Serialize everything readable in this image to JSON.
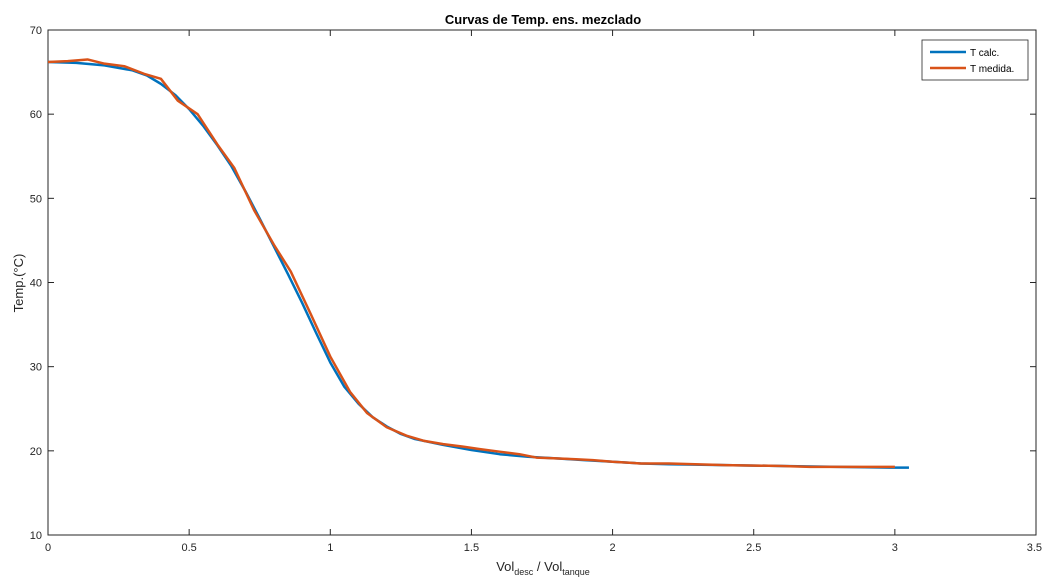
{
  "chart_data": {
    "type": "line",
    "title": "Curvas de Temp. ens. mezclado",
    "ylabel": "Temp.(°C)",
    "xlabel": {
      "base1": "Vol",
      "sub1": "desc",
      "mid": " / ",
      "base2": "Vol",
      "sub2": "tanque"
    },
    "xlim": [
      0,
      3.5
    ],
    "ylim": [
      10,
      70
    ],
    "xticks": [
      "0",
      "0.5",
      "1",
      "1.5",
      "2",
      "2.5",
      "3",
      "3.5"
    ],
    "yticks": [
      "10",
      "20",
      "30",
      "40",
      "50",
      "60",
      "70"
    ],
    "grid": false,
    "legend_position": "top-right",
    "series": [
      {
        "name": "T calc.",
        "color": "#0072BD",
        "x": [
          0,
          0.1,
          0.2,
          0.3,
          0.35,
          0.4,
          0.45,
          0.5,
          0.55,
          0.6,
          0.65,
          0.7,
          0.75,
          0.8,
          0.85,
          0.9,
          0.95,
          1.0,
          1.05,
          1.1,
          1.15,
          1.2,
          1.25,
          1.3,
          1.4,
          1.5,
          1.6,
          1.7,
          1.8,
          1.9,
          2.0,
          2.1,
          2.2,
          2.4,
          2.6,
          2.8,
          3.0,
          3.05
        ],
        "y": [
          66.2,
          66.1,
          65.8,
          65.2,
          64.6,
          63.6,
          62.3,
          60.6,
          58.6,
          56.3,
          53.8,
          50.8,
          47.6,
          44.3,
          41.0,
          37.6,
          34.0,
          30.5,
          27.6,
          25.6,
          24.0,
          22.9,
          22.0,
          21.4,
          20.7,
          20.1,
          19.6,
          19.3,
          19.1,
          18.9,
          18.7,
          18.5,
          18.4,
          18.3,
          18.2,
          18.1,
          18.0,
          18.0
        ]
      },
      {
        "name": "T medida.",
        "color": "#D95319",
        "x": [
          0,
          0.07,
          0.14,
          0.2,
          0.27,
          0.34,
          0.4,
          0.46,
          0.53,
          0.6,
          0.66,
          0.73,
          0.8,
          0.86,
          0.93,
          1.0,
          1.07,
          1.13,
          1.2,
          1.27,
          1.33,
          1.4,
          1.47,
          1.53,
          1.6,
          1.67,
          1.73,
          1.8,
          1.87,
          1.93,
          2.0,
          2.1,
          2.2,
          2.4,
          2.6,
          2.7,
          2.8,
          3.0
        ],
        "y": [
          66.2,
          66.3,
          66.5,
          66.0,
          65.7,
          64.8,
          64.2,
          61.6,
          60.0,
          56.4,
          53.6,
          48.6,
          44.5,
          41.3,
          36.3,
          31.2,
          27.0,
          24.5,
          22.8,
          21.8,
          21.2,
          20.8,
          20.5,
          20.2,
          19.9,
          19.6,
          19.2,
          19.1,
          19.0,
          18.9,
          18.7,
          18.5,
          18.5,
          18.3,
          18.2,
          18.1,
          18.1,
          18.1
        ]
      }
    ]
  }
}
